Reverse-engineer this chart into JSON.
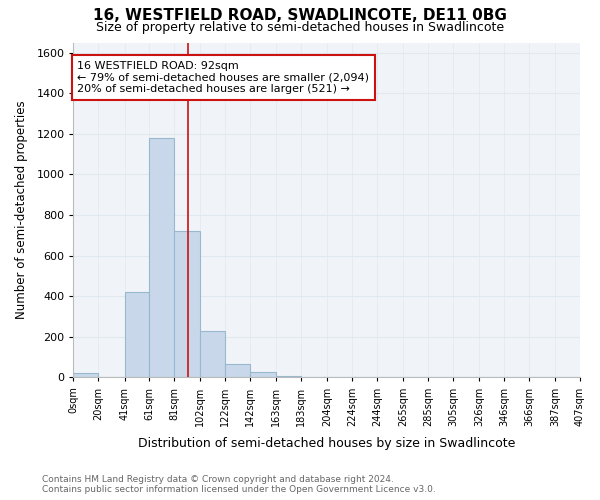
{
  "title": "16, WESTFIELD ROAD, SWADLINCOTE, DE11 0BG",
  "subtitle": "Size of property relative to semi-detached houses in Swadlincote",
  "xlabel": "Distribution of semi-detached houses by size in Swadlincote",
  "ylabel": "Number of semi-detached properties",
  "footnote1": "Contains HM Land Registry data © Crown copyright and database right 2024.",
  "footnote2": "Contains public sector information licensed under the Open Government Licence v3.0.",
  "annotation_line1": "16 WESTFIELD ROAD: 92sqm",
  "annotation_line2": "← 79% of semi-detached houses are smaller (2,094)",
  "annotation_line3": "20% of semi-detached houses are larger (521) →",
  "subject_value": 92,
  "bin_edges": [
    0,
    20,
    41,
    61,
    81,
    102,
    122,
    142,
    163,
    183,
    204,
    224,
    244,
    265,
    285,
    305,
    326,
    346,
    366,
    387,
    407
  ],
  "bin_counts": [
    20,
    0,
    420,
    1180,
    720,
    230,
    65,
    25,
    5,
    0,
    0,
    0,
    0,
    0,
    0,
    0,
    0,
    0,
    0,
    0
  ],
  "bar_color": "#c8d8ea",
  "bar_edge_color": "#98b8d0",
  "subject_line_color": "#cc1111",
  "annotation_box_edge_color": "#cc1111",
  "plot_bg_color": "#f0f4f8",
  "fig_bg_color": "#ffffff",
  "ylim": [
    0,
    1650
  ],
  "yticks": [
    0,
    200,
    400,
    600,
    800,
    1000,
    1200,
    1400,
    1600
  ],
  "xtick_labels": [
    "0sqm",
    "20sqm",
    "41sqm",
    "61sqm",
    "81sqm",
    "102sqm",
    "122sqm",
    "142sqm",
    "163sqm",
    "183sqm",
    "204sqm",
    "224sqm",
    "244sqm",
    "265sqm",
    "285sqm",
    "305sqm",
    "326sqm",
    "346sqm",
    "366sqm",
    "387sqm",
    "407sqm"
  ],
  "grid_color": "#e0e8f0",
  "title_fontsize": 11,
  "subtitle_fontsize": 9,
  "footnote_fontsize": 6.5,
  "footnote_color": "#666666"
}
